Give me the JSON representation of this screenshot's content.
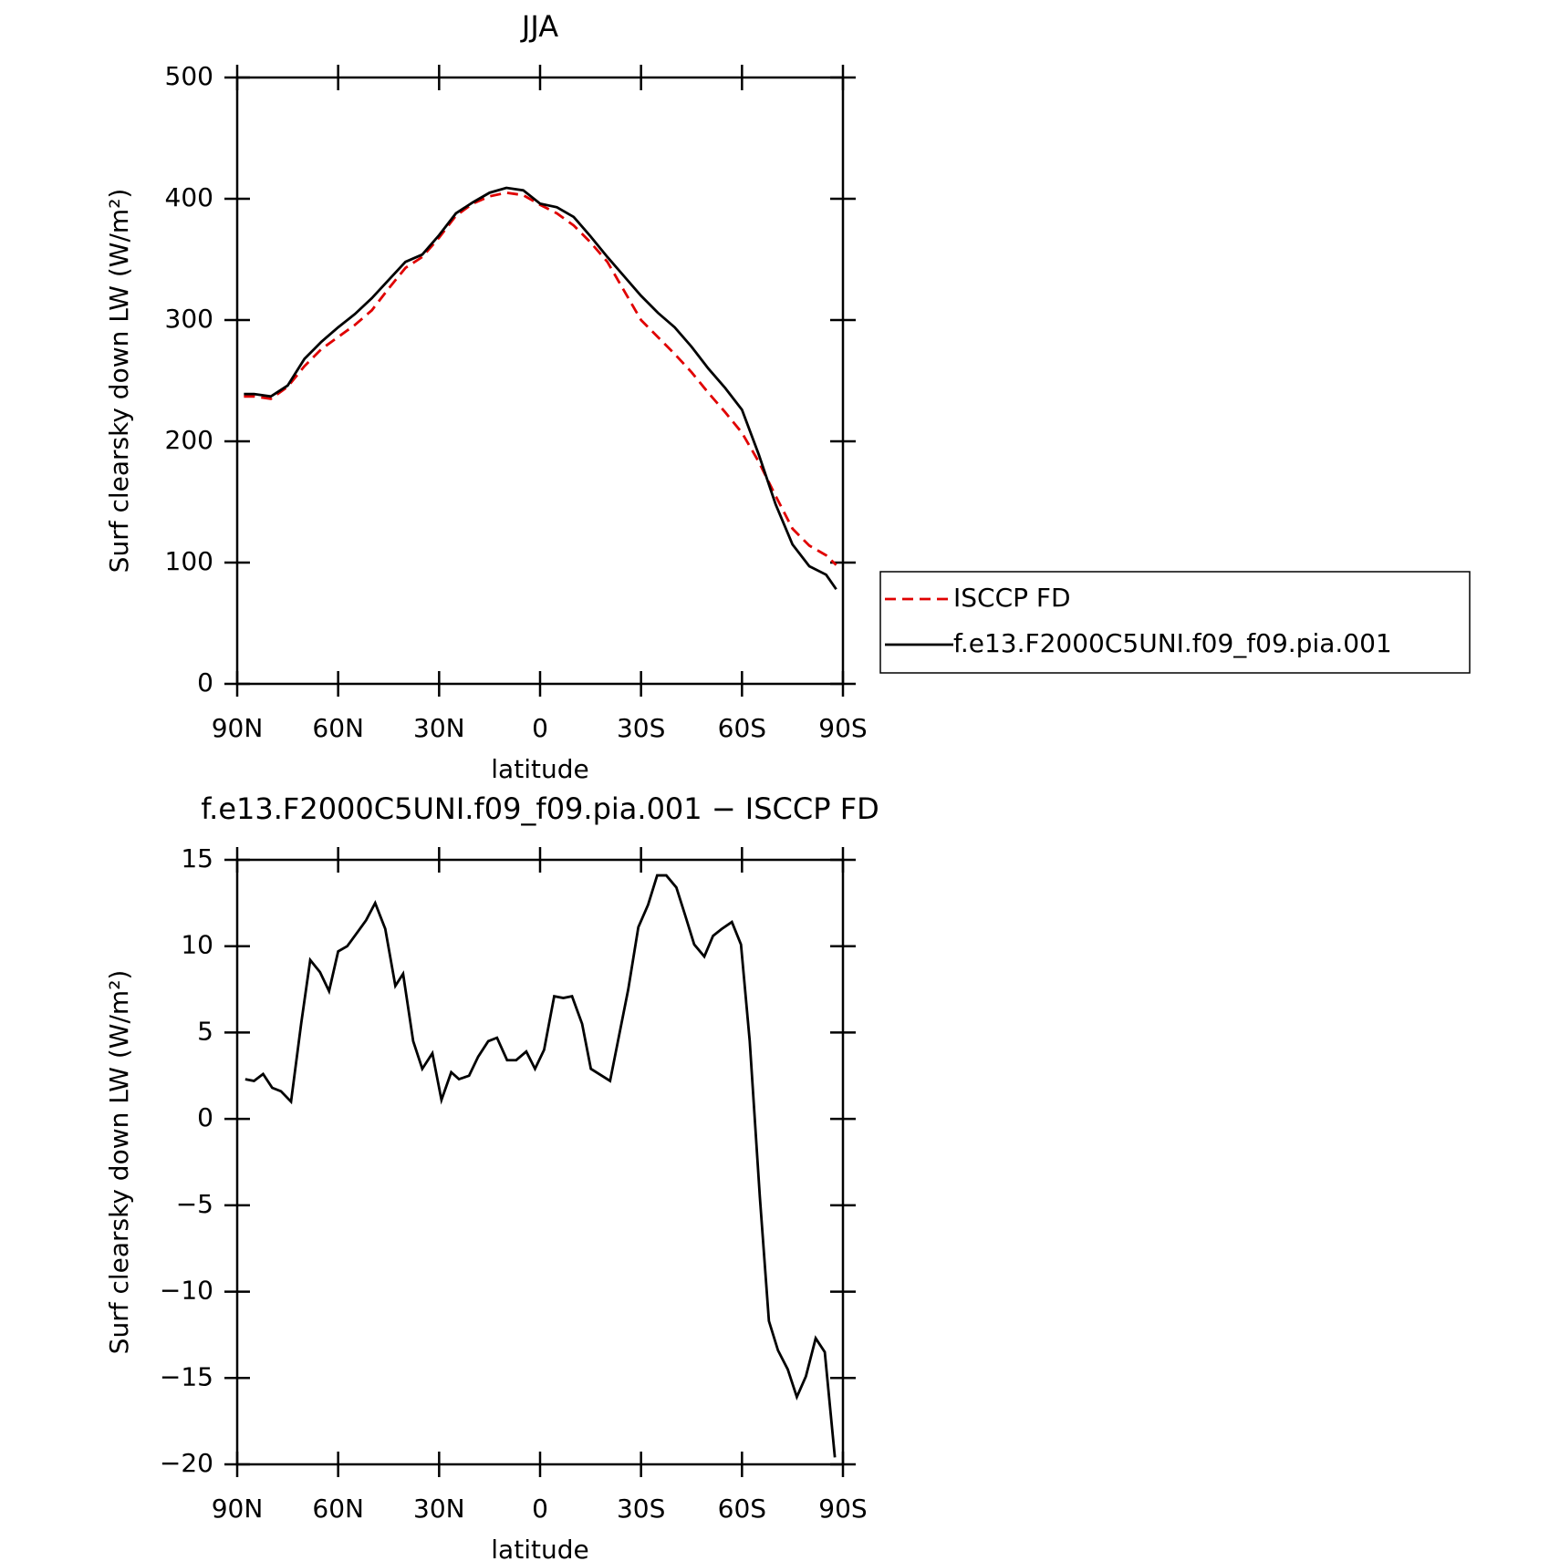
{
  "chart_data": [
    {
      "type": "line",
      "title": "JJA",
      "xlabel": "latitude",
      "ylabel": "Surf clearsky down LW (W/m²)",
      "x": [
        88,
        85,
        80,
        75,
        70,
        65,
        60,
        55,
        50,
        45,
        40,
        35,
        30,
        25,
        20,
        15,
        10,
        5,
        0,
        -5,
        -10,
        -15,
        -20,
        -25,
        -30,
        -35,
        -40,
        -45,
        -50,
        -55,
        -60,
        -65,
        -70,
        -75,
        -80,
        -85,
        -88
      ],
      "series": [
        {
          "name": "ISCCP FD",
          "color": "#e00000",
          "style": "dashed",
          "values": [
            237,
            237,
            235,
            245,
            262,
            276,
            286,
            296,
            308,
            326,
            343,
            352,
            368,
            386,
            396,
            402,
            405,
            403,
            395,
            388,
            378,
            364,
            348,
            324,
            300,
            286,
            272,
            257,
            240,
            224,
            207,
            183,
            155,
            128,
            114,
            106,
            98
          ]
        },
        {
          "name": "f.e13.F2000C5UNI.f09_f09.pia.001",
          "color": "#000000",
          "style": "solid",
          "values": [
            239,
            239,
            237,
            246,
            268,
            282,
            294,
            305,
            318,
            333,
            348,
            354,
            370,
            388,
            397,
            405,
            409,
            407,
            396,
            393,
            385,
            369,
            352,
            336,
            320,
            306,
            294,
            278,
            260,
            244,
            226,
            189,
            148,
            115,
            97,
            90,
            78
          ]
        }
      ],
      "xlim": [
        90,
        -90
      ],
      "xticks": [
        {
          "value": 90,
          "label": "90N"
        },
        {
          "value": 60,
          "label": "60N"
        },
        {
          "value": 30,
          "label": "30N"
        },
        0,
        {
          "value": -30,
          "label": "30S"
        },
        {
          "value": -60,
          "label": "60S"
        },
        {
          "value": -90,
          "label": "90S"
        }
      ],
      "ylim": [
        0,
        500
      ],
      "yticks": [
        0,
        100,
        200,
        300,
        400,
        500
      ],
      "legend": "right"
    },
    {
      "type": "line",
      "title": "f.e13.F2000C5UNI.f09_f09.pia.001 − ISCCP FD",
      "xlabel": "latitude",
      "ylabel": "Surf clearsky down LW (W/m²)",
      "x": [
        87.6,
        85.0,
        82.3,
        79.6,
        77.0,
        74.0,
        71.0,
        68.3,
        65.4,
        62.7,
        60.0,
        57.3,
        54.3,
        51.7,
        49.0,
        46.0,
        43.0,
        40.7,
        37.7,
        35.0,
        32.0,
        29.3,
        26.4,
        24.1,
        21.1,
        18.4,
        15.4,
        12.8,
        9.8,
        7.1,
        4.1,
        1.5,
        -1.2,
        -4.2,
        -6.9,
        -9.5,
        -12.5,
        -15.1,
        -20.8,
        -26.2,
        -29.2,
        -32.1,
        -34.8,
        -37.5,
        -40.5,
        -43.1,
        -45.8,
        -48.8,
        -51.4,
        -54.0,
        -57.0,
        -59.7,
        -62.3,
        -65.3,
        -68.0,
        -70.7,
        -73.6,
        -76.3,
        -79.0,
        -81.9,
        -84.6,
        -87.6
      ],
      "color": "#000000",
      "values": [
        2.3,
        2.2,
        2.6,
        1.8,
        1.6,
        1.0,
        5.5,
        9.2,
        8.5,
        7.4,
        9.7,
        10.0,
        10.8,
        11.5,
        12.5,
        11.0,
        7.7,
        8.4,
        4.5,
        2.9,
        3.8,
        1.1,
        2.7,
        2.3,
        2.5,
        3.6,
        4.5,
        4.7,
        3.4,
        3.4,
        3.9,
        2.9,
        4.0,
        7.1,
        7.0,
        7.1,
        5.5,
        2.9,
        2.2,
        7.5,
        11.1,
        12.4,
        14.1,
        14.1,
        13.4,
        11.8,
        10.1,
        9.4,
        10.6,
        11.0,
        11.4,
        10.1,
        4.5,
        -4.5,
        -11.7,
        -13.4,
        -14.5,
        -16.1,
        -14.9,
        -12.7,
        -13.5,
        -19.6
      ],
      "xlim": [
        90,
        -90
      ],
      "xticks": [
        {
          "value": 90,
          "label": "90N"
        },
        {
          "value": 60,
          "label": "60N"
        },
        {
          "value": 30,
          "label": "30N"
        },
        0,
        {
          "value": -30,
          "label": "30S"
        },
        {
          "value": -60,
          "label": "60S"
        },
        {
          "value": -90,
          "label": "90S"
        }
      ],
      "ylim": [
        -20,
        15
      ],
      "yticks": [
        {
          "value": -20,
          "label": "−20"
        },
        {
          "value": -15,
          "label": "−15"
        },
        {
          "value": -10,
          "label": "−10"
        },
        {
          "value": -5,
          "label": "−5"
        },
        0,
        5,
        10,
        15
      ]
    }
  ]
}
